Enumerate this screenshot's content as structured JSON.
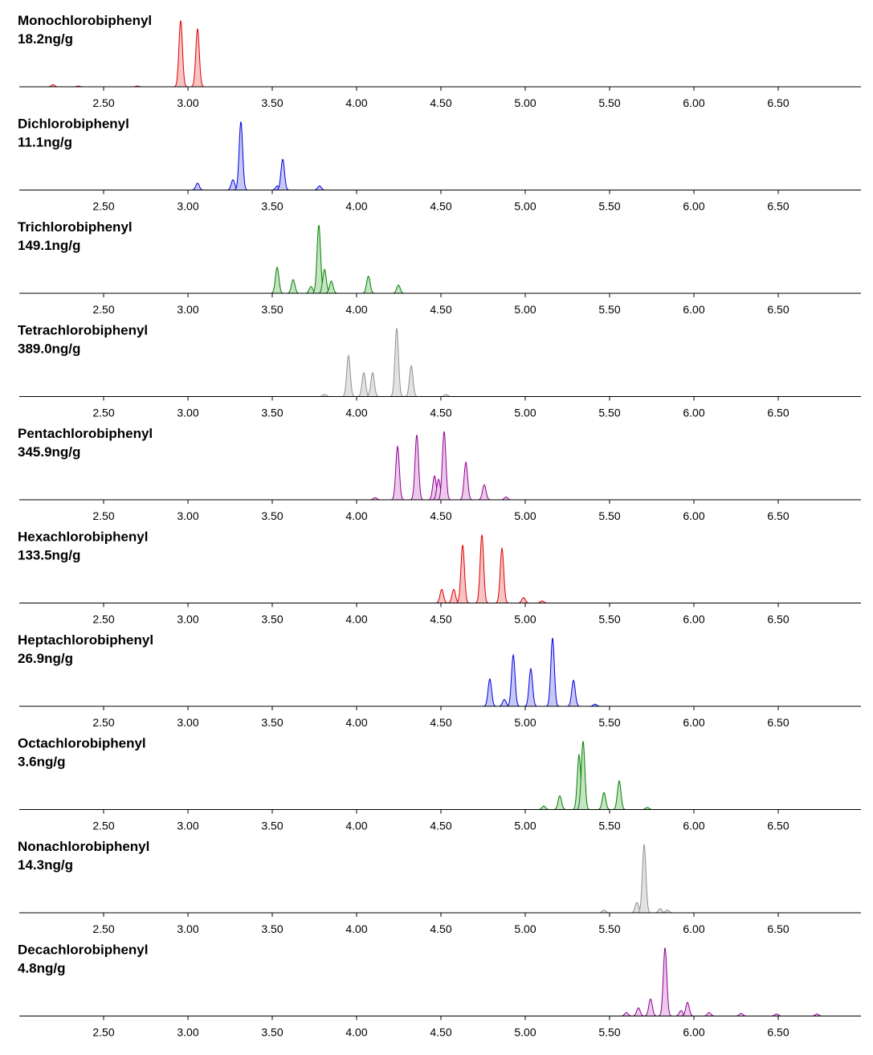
{
  "chart_data": [
    {
      "type": "peaks",
      "title": "Monochlorobiphenyl",
      "subtitle": "18.2ng/g",
      "color": "#e00000",
      "fill": "#f6c4c4",
      "x": [
        2.2,
        2.35,
        2.7,
        2.957,
        3.057
      ],
      "values": [
        3,
        1,
        1,
        97,
        85
      ],
      "xlim": [
        2.0,
        7.0
      ],
      "ylim": [
        0,
        100
      ],
      "xticks": [
        {
          "value": 2.5,
          "label": "2.50"
        },
        {
          "value": 3.0,
          "label": "3.00"
        },
        {
          "value": 3.5,
          "label": "3.50"
        },
        {
          "value": 4.0,
          "label": "4.00"
        },
        {
          "value": 4.5,
          "label": "4.50"
        },
        {
          "value": 5.0,
          "label": "5.00"
        },
        {
          "value": 5.5,
          "label": "5.50"
        },
        {
          "value": 6.0,
          "label": "6.00"
        },
        {
          "value": 6.5,
          "label": "6.50"
        }
      ]
    },
    {
      "type": "peaks",
      "title": "Dichlorobiphenyl",
      "subtitle": "11.1ng/g",
      "color": "#0000e0",
      "fill": "#c8c8f4",
      "x": [
        3.057,
        3.267,
        3.314,
        3.53,
        3.562,
        3.78
      ],
      "values": [
        10,
        15,
        100,
        6,
        45,
        6
      ],
      "xlim": [
        2.0,
        7.0
      ],
      "ylim": [
        0,
        100
      ],
      "xticks": [
        {
          "value": 2.5,
          "label": "2.50"
        },
        {
          "value": 3.0,
          "label": "3.00"
        },
        {
          "value": 3.5,
          "label": "3.50"
        },
        {
          "value": 4.0,
          "label": "4.00"
        },
        {
          "value": 4.5,
          "label": "4.50"
        },
        {
          "value": 5.0,
          "label": "5.00"
        },
        {
          "value": 5.5,
          "label": "5.50"
        },
        {
          "value": 6.0,
          "label": "6.00"
        },
        {
          "value": 6.5,
          "label": "6.50"
        }
      ]
    },
    {
      "type": "peaks",
      "title": "Trichlorobiphenyl",
      "subtitle": "149.1ng/g",
      "color": "#008000",
      "fill": "#c4e4c4",
      "x": [
        3.529,
        3.624,
        3.73,
        3.776,
        3.81,
        3.85,
        4.07,
        4.248
      ],
      "values": [
        38,
        20,
        10,
        100,
        35,
        18,
        25,
        12
      ],
      "xlim": [
        2.0,
        7.0
      ],
      "ylim": [
        0,
        100
      ],
      "xticks": [
        {
          "value": 2.5,
          "label": "2.50"
        },
        {
          "value": 3.0,
          "label": "3.00"
        },
        {
          "value": 3.5,
          "label": "3.50"
        },
        {
          "value": 4.0,
          "label": "4.00"
        },
        {
          "value": 4.5,
          "label": "4.50"
        },
        {
          "value": 5.0,
          "label": "5.00"
        },
        {
          "value": 5.5,
          "label": "5.50"
        },
        {
          "value": 6.0,
          "label": "6.00"
        },
        {
          "value": 6.5,
          "label": "6.50"
        }
      ]
    },
    {
      "type": "peaks",
      "title": "Tetrachlorobiphenyl",
      "subtitle": "389.0ng/g",
      "color": "#909090",
      "fill": "#e2e2e2",
      "x": [
        3.81,
        3.952,
        4.043,
        4.095,
        4.238,
        4.324,
        4.53
      ],
      "values": [
        3,
        60,
        35,
        35,
        100,
        45,
        3
      ],
      "xlim": [
        2.0,
        7.0
      ],
      "ylim": [
        0,
        100
      ],
      "xticks": [
        {
          "value": 2.5,
          "label": "2.50"
        },
        {
          "value": 3.0,
          "label": "3.00"
        },
        {
          "value": 3.5,
          "label": "3.50"
        },
        {
          "value": 4.0,
          "label": "4.00"
        },
        {
          "value": 4.5,
          "label": "4.50"
        },
        {
          "value": 5.0,
          "label": "5.00"
        },
        {
          "value": 5.5,
          "label": "5.50"
        },
        {
          "value": 6.0,
          "label": "6.00"
        },
        {
          "value": 6.5,
          "label": "6.50"
        }
      ]
    },
    {
      "type": "peaks",
      "title": "Pentachlorobiphenyl",
      "subtitle": "345.9ng/g",
      "color": "#900090",
      "fill": "#eccaec",
      "x": [
        4.11,
        4.243,
        4.357,
        4.462,
        4.486,
        4.519,
        4.648,
        4.757,
        4.886
      ],
      "values": [
        3,
        78,
        95,
        35,
        30,
        100,
        55,
        22,
        4
      ],
      "xlim": [
        2.0,
        7.0
      ],
      "ylim": [
        0,
        100
      ],
      "xticks": [
        {
          "value": 2.5,
          "label": "2.50"
        },
        {
          "value": 3.0,
          "label": "3.00"
        },
        {
          "value": 3.5,
          "label": "3.50"
        },
        {
          "value": 4.0,
          "label": "4.00"
        },
        {
          "value": 4.5,
          "label": "4.50"
        },
        {
          "value": 5.0,
          "label": "5.00"
        },
        {
          "value": 5.5,
          "label": "5.50"
        },
        {
          "value": 6.0,
          "label": "6.00"
        },
        {
          "value": 6.5,
          "label": "6.50"
        }
      ]
    },
    {
      "type": "peaks",
      "title": "Hexachlorobiphenyl",
      "subtitle": "133.5ng/g",
      "color": "#e00000",
      "fill": "#f6c4c4",
      "x": [
        4.505,
        4.576,
        4.629,
        4.743,
        4.862,
        4.99,
        5.1
      ],
      "values": [
        20,
        20,
        85,
        100,
        80,
        8,
        3
      ],
      "xlim": [
        2.0,
        7.0
      ],
      "ylim": [
        0,
        100
      ],
      "xticks": [
        {
          "value": 2.5,
          "label": "2.50"
        },
        {
          "value": 3.0,
          "label": "3.00"
        },
        {
          "value": 3.5,
          "label": "3.50"
        },
        {
          "value": 4.0,
          "label": "4.00"
        },
        {
          "value": 4.5,
          "label": "4.50"
        },
        {
          "value": 5.0,
          "label": "5.00"
        },
        {
          "value": 5.5,
          "label": "5.50"
        },
        {
          "value": 6.0,
          "label": "6.00"
        },
        {
          "value": 6.5,
          "label": "6.50"
        }
      ]
    },
    {
      "type": "peaks",
      "title": "Heptachlorobiphenyl",
      "subtitle": "26.9ng/g",
      "color": "#0000e0",
      "fill": "#c8c8f4",
      "x": [
        4.79,
        4.876,
        4.929,
        5.033,
        5.162,
        5.286,
        5.414
      ],
      "values": [
        40,
        10,
        75,
        55,
        100,
        38,
        3
      ],
      "xlim": [
        2.0,
        7.0
      ],
      "ylim": [
        0,
        100
      ],
      "xticks": [
        {
          "value": 2.5,
          "label": "2.50"
        },
        {
          "value": 3.0,
          "label": "3.00"
        },
        {
          "value": 3.5,
          "label": "3.50"
        },
        {
          "value": 4.0,
          "label": "4.00"
        },
        {
          "value": 4.5,
          "label": "4.50"
        },
        {
          "value": 5.0,
          "label": "5.00"
        },
        {
          "value": 5.5,
          "label": "5.50"
        },
        {
          "value": 6.0,
          "label": "6.00"
        },
        {
          "value": 6.5,
          "label": "6.50"
        }
      ]
    },
    {
      "type": "peaks",
      "title": "Octachlorobiphenyl",
      "subtitle": "3.6ng/g",
      "color": "#008000",
      "fill": "#c4e4c4",
      "x": [
        5.11,
        5.205,
        5.319,
        5.343,
        5.467,
        5.557,
        5.724
      ],
      "values": [
        5,
        20,
        80,
        100,
        25,
        42,
        3
      ],
      "xlim": [
        2.0,
        7.0
      ],
      "ylim": [
        0,
        100
      ],
      "xticks": [
        {
          "value": 2.5,
          "label": "2.50"
        },
        {
          "value": 3.0,
          "label": "3.00"
        },
        {
          "value": 3.5,
          "label": "3.50"
        },
        {
          "value": 4.0,
          "label": "4.00"
        },
        {
          "value": 4.5,
          "label": "4.50"
        },
        {
          "value": 5.0,
          "label": "5.00"
        },
        {
          "value": 5.5,
          "label": "5.50"
        },
        {
          "value": 6.0,
          "label": "6.00"
        },
        {
          "value": 6.5,
          "label": "6.50"
        }
      ]
    },
    {
      "type": "peaks",
      "title": "Nonachlorobiphenyl",
      "subtitle": "14.3ng/g",
      "color": "#909090",
      "fill": "#e2e2e2",
      "x": [
        5.467,
        5.662,
        5.705,
        5.8,
        5.843
      ],
      "values": [
        4,
        15,
        100,
        6,
        4
      ],
      "xlim": [
        2.0,
        7.0
      ],
      "ylim": [
        0,
        100
      ],
      "xticks": [
        {
          "value": 2.5,
          "label": "2.50"
        },
        {
          "value": 3.0,
          "label": "3.00"
        },
        {
          "value": 3.5,
          "label": "3.50"
        },
        {
          "value": 4.0,
          "label": "4.00"
        },
        {
          "value": 4.5,
          "label": "4.50"
        },
        {
          "value": 5.0,
          "label": "5.00"
        },
        {
          "value": 5.5,
          "label": "5.50"
        },
        {
          "value": 6.0,
          "label": "6.00"
        },
        {
          "value": 6.5,
          "label": "6.50"
        }
      ]
    },
    {
      "type": "peaks",
      "title": "Decachlorobiphenyl",
      "subtitle": "4.8ng/g",
      "color": "#900090",
      "fill": "#eccaec",
      "x": [
        5.6,
        5.671,
        5.743,
        5.829,
        5.924,
        5.962,
        6.09,
        6.28,
        6.49,
        6.73
      ],
      "values": [
        5,
        12,
        25,
        100,
        8,
        20,
        5,
        4,
        3,
        3
      ],
      "xlim": [
        2.0,
        7.0
      ],
      "ylim": [
        0,
        100
      ],
      "xticks": [
        {
          "value": 2.5,
          "label": "2.50"
        },
        {
          "value": 3.0,
          "label": "3.00"
        },
        {
          "value": 3.5,
          "label": "3.50"
        },
        {
          "value": 4.0,
          "label": "4.00"
        },
        {
          "value": 4.5,
          "label": "4.50"
        },
        {
          "value": 5.0,
          "label": "5.00"
        },
        {
          "value": 5.5,
          "label": "5.50"
        },
        {
          "value": 6.0,
          "label": "6.00"
        },
        {
          "value": 6.5,
          "label": "6.50"
        }
      ]
    }
  ]
}
